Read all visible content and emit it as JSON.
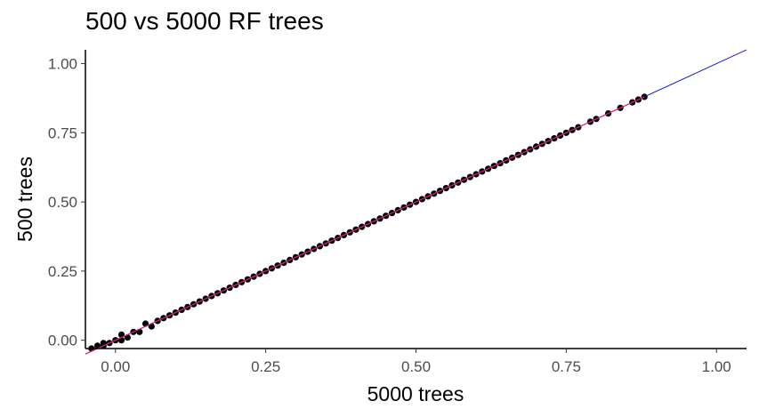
{
  "chart_data": {
    "type": "scatter",
    "title": "500 vs 5000 RF trees",
    "xlabel": "5000 trees",
    "ylabel": "500 trees",
    "xlim": [
      -0.05,
      1.05
    ],
    "ylim": [
      -0.03,
      1.05
    ],
    "x_ticks": [
      0.0,
      0.25,
      0.5,
      0.75,
      1.0
    ],
    "x_tick_labels": [
      "0.00",
      "0.25",
      "0.50",
      "0.75",
      "1.00"
    ],
    "y_ticks": [
      0.0,
      0.25,
      0.5,
      0.75,
      1.0
    ],
    "y_tick_labels": [
      "0.00",
      "0.25",
      "0.50",
      "0.75",
      "1.00"
    ],
    "grid": false,
    "series": [
      {
        "values": [
          [
            -0.04,
            -0.03
          ],
          [
            -0.03,
            -0.02
          ],
          [
            -0.02,
            -0.02
          ],
          [
            -0.02,
            -0.01
          ],
          [
            -0.01,
            -0.01
          ],
          [
            0.0,
            0.0
          ],
          [
            0.01,
            0.0
          ],
          [
            0.01,
            0.02
          ],
          [
            0.02,
            0.01
          ],
          [
            0.03,
            0.03
          ],
          [
            0.04,
            0.03
          ],
          [
            0.05,
            0.06
          ],
          [
            0.06,
            0.05
          ],
          [
            0.07,
            0.07
          ],
          [
            0.08,
            0.08
          ],
          [
            0.09,
            0.09
          ],
          [
            0.1,
            0.1
          ],
          [
            0.11,
            0.11
          ],
          [
            0.12,
            0.12
          ],
          [
            0.13,
            0.13
          ],
          [
            0.14,
            0.14
          ],
          [
            0.15,
            0.15
          ],
          [
            0.16,
            0.16
          ],
          [
            0.17,
            0.17
          ],
          [
            0.18,
            0.18
          ],
          [
            0.19,
            0.19
          ],
          [
            0.2,
            0.2
          ],
          [
            0.21,
            0.21
          ],
          [
            0.22,
            0.22
          ],
          [
            0.23,
            0.23
          ],
          [
            0.24,
            0.24
          ],
          [
            0.25,
            0.25
          ],
          [
            0.26,
            0.26
          ],
          [
            0.27,
            0.27
          ],
          [
            0.28,
            0.28
          ],
          [
            0.29,
            0.29
          ],
          [
            0.3,
            0.3
          ],
          [
            0.31,
            0.31
          ],
          [
            0.32,
            0.32
          ],
          [
            0.33,
            0.33
          ],
          [
            0.34,
            0.34
          ],
          [
            0.35,
            0.35
          ],
          [
            0.36,
            0.36
          ],
          [
            0.37,
            0.37
          ],
          [
            0.38,
            0.38
          ],
          [
            0.39,
            0.39
          ],
          [
            0.4,
            0.4
          ],
          [
            0.41,
            0.41
          ],
          [
            0.42,
            0.42
          ],
          [
            0.43,
            0.43
          ],
          [
            0.44,
            0.44
          ],
          [
            0.45,
            0.45
          ],
          [
            0.46,
            0.46
          ],
          [
            0.47,
            0.47
          ],
          [
            0.48,
            0.48
          ],
          [
            0.49,
            0.49
          ],
          [
            0.5,
            0.5
          ],
          [
            0.51,
            0.51
          ],
          [
            0.52,
            0.52
          ],
          [
            0.53,
            0.53
          ],
          [
            0.54,
            0.54
          ],
          [
            0.55,
            0.55
          ],
          [
            0.56,
            0.56
          ],
          [
            0.57,
            0.57
          ],
          [
            0.58,
            0.58
          ],
          [
            0.59,
            0.59
          ],
          [
            0.6,
            0.6
          ],
          [
            0.61,
            0.61
          ],
          [
            0.62,
            0.62
          ],
          [
            0.63,
            0.63
          ],
          [
            0.64,
            0.64
          ],
          [
            0.65,
            0.65
          ],
          [
            0.66,
            0.66
          ],
          [
            0.67,
            0.67
          ],
          [
            0.68,
            0.68
          ],
          [
            0.69,
            0.69
          ],
          [
            0.7,
            0.7
          ],
          [
            0.71,
            0.71
          ],
          [
            0.72,
            0.72
          ],
          [
            0.73,
            0.73
          ],
          [
            0.74,
            0.74
          ],
          [
            0.75,
            0.75
          ],
          [
            0.76,
            0.76
          ],
          [
            0.77,
            0.77
          ],
          [
            0.79,
            0.79
          ],
          [
            0.8,
            0.8
          ],
          [
            0.82,
            0.82
          ],
          [
            0.84,
            0.84
          ],
          [
            0.86,
            0.86
          ],
          [
            0.87,
            0.87
          ],
          [
            0.88,
            0.88
          ]
        ],
        "color": "#000000"
      }
    ],
    "reference_lines": [
      {
        "kind": "identity",
        "slope": 1,
        "intercept": 0,
        "color": "#0000cc"
      },
      {
        "kind": "fit",
        "slope": 1,
        "intercept": 0,
        "x_range": [
          -0.05,
          0.88
        ],
        "color": "#e0207a"
      }
    ]
  }
}
